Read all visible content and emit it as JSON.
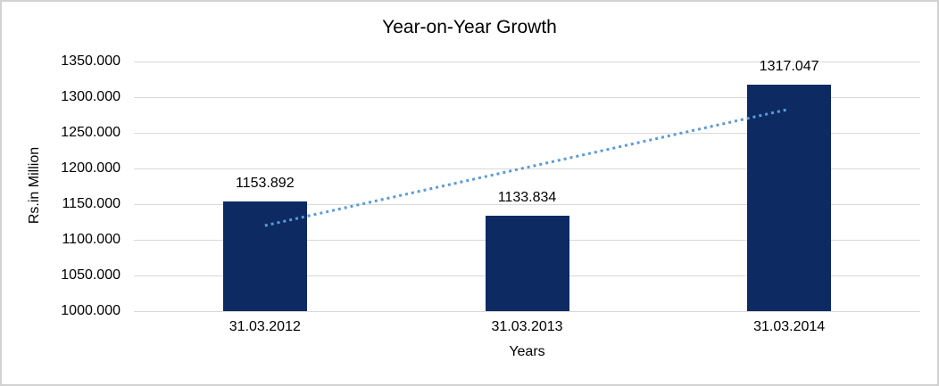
{
  "chart_data": {
    "type": "bar",
    "title": "Year-on-Year Growth",
    "xlabel": "Years",
    "ylabel": "Rs.in Million",
    "categories": [
      "31.03.2012",
      "31.03.2013",
      "31.03.2014"
    ],
    "values": [
      1153.892,
      1133.834,
      1317.047
    ],
    "data_labels": [
      "1153.892",
      "1133.834",
      "1317.047"
    ],
    "ylim": [
      1000,
      1350
    ],
    "ytick_labels": [
      "1000.000",
      "1050.000",
      "1100.000",
      "1150.000",
      "1200.000",
      "1250.000",
      "1300.000",
      "1350.000"
    ],
    "grid": true,
    "legend": "none",
    "colors": {
      "bar": "#0d2a63",
      "trendline": "#5b9bd5",
      "gridline": "#d9d9d9",
      "text": "#000000",
      "border": "#d2d2d2",
      "background": "#ffffff"
    },
    "trendline": {
      "kind": "linear",
      "style": "dotted",
      "start_value": 1120.0,
      "end_value": 1283.2
    }
  }
}
